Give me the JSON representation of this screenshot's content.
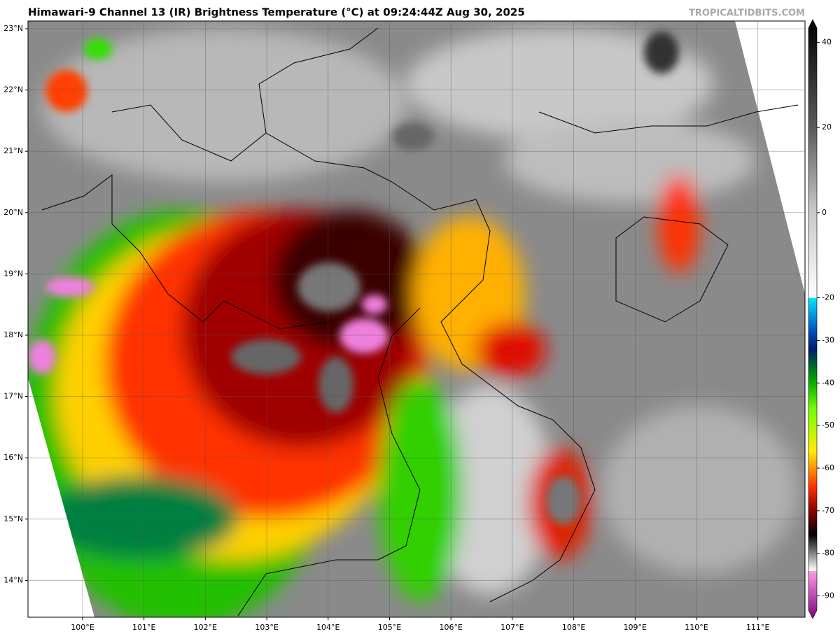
{
  "title": "Himawari-9 Channel 13 (IR) Brightness Temperature (°C) at 09:24:44Z Aug 30, 2025",
  "watermark": "TROPICALTIDBITS.COM",
  "map": {
    "lat_labels": [
      "23°N",
      "22°N",
      "21°N",
      "20°N",
      "19°N",
      "18°N",
      "17°N",
      "16°N",
      "15°N",
      "14°N"
    ],
    "lon_labels": [
      "100°E",
      "101°E",
      "102°E",
      "103°E",
      "104°E",
      "105°E",
      "106°E",
      "107°E",
      "108°E",
      "109°E",
      "110°E",
      "111°E"
    ]
  },
  "colorbar": {
    "lim": [
      -95,
      45
    ],
    "ticks": [
      40,
      20,
      0,
      -20,
      -30,
      -40,
      -50,
      -60,
      -70,
      -80,
      -90
    ]
  }
}
